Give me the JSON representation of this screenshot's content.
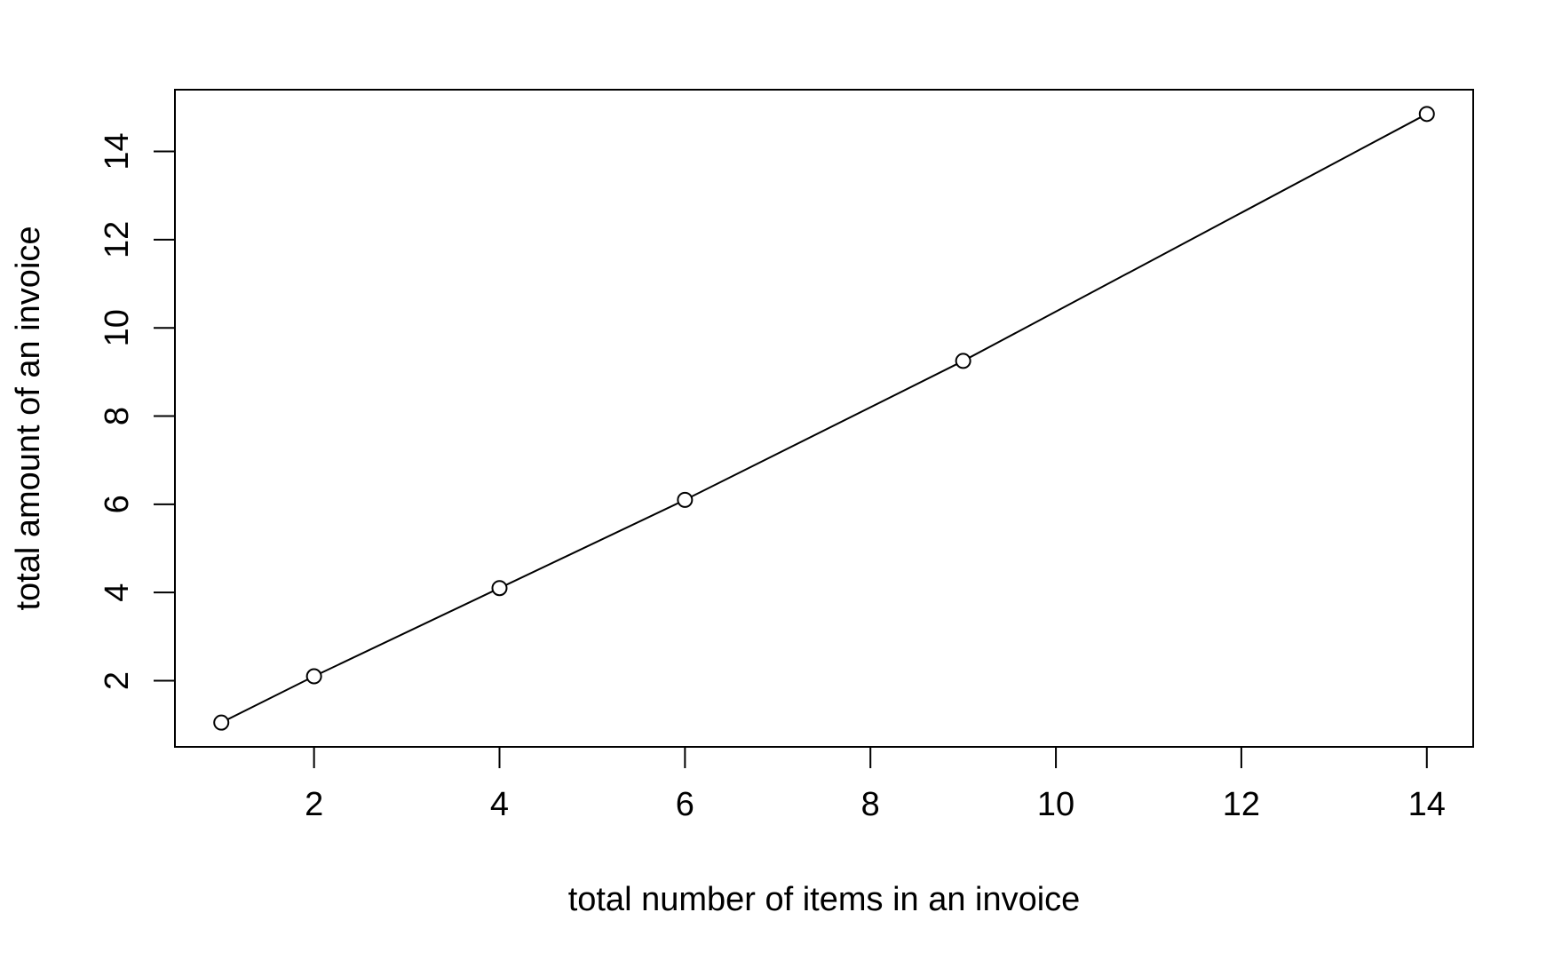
{
  "chart_data": {
    "type": "line",
    "title": "",
    "xlabel": "total number of items in an invoice",
    "ylabel": "total amount of an invoice",
    "x": [
      1,
      2,
      4,
      6,
      9,
      14
    ],
    "series": [
      {
        "values": [
          1.05,
          2.1,
          4.1,
          6.1,
          9.25,
          14.85
        ]
      }
    ],
    "xlim": [
      0.5,
      14.5
    ],
    "ylim": [
      0.5,
      15.4
    ],
    "xticks": [
      2,
      4,
      6,
      8,
      10,
      12,
      14
    ],
    "yticks": [
      2,
      4,
      6,
      8,
      10,
      12,
      14
    ],
    "markers": "open-circle",
    "grid": false,
    "legend": "none",
    "colors": {
      "line": "#000000",
      "background": "#ffffff"
    }
  }
}
